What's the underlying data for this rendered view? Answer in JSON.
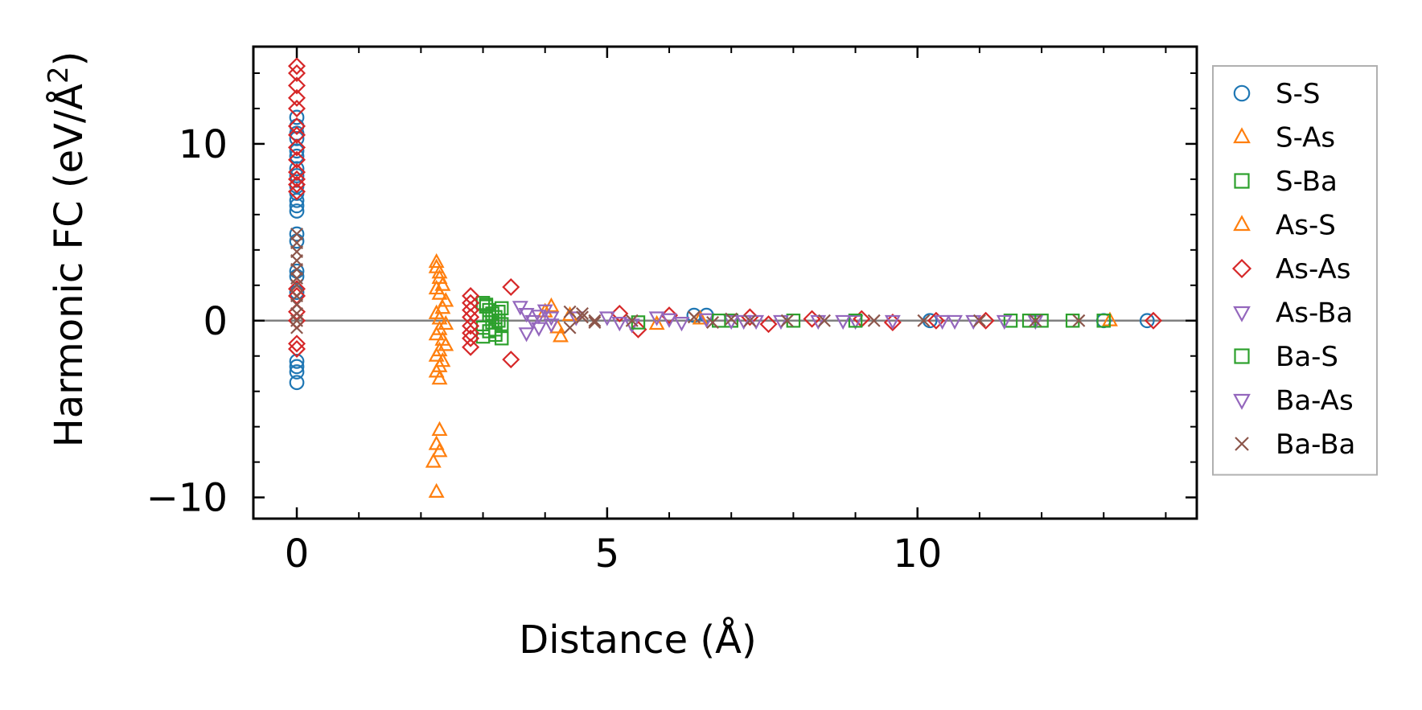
{
  "chart_data": {
    "type": "scatter",
    "xlabel": "Distance (Å)",
    "ylabel_main": "Harmonic FC (eV/Å",
    "ylabel_sup": "2",
    "ylabel_end": ")",
    "xlim": [
      -0.7,
      14.5
    ],
    "ylim": [
      -11.2,
      15.5
    ],
    "xticks": [
      0,
      5,
      10
    ],
    "xtick_labels": [
      "0",
      "5",
      "10"
    ],
    "yticks": [
      -10,
      0,
      10
    ],
    "ytick_labels": [
      "−10",
      "0",
      "10"
    ],
    "grid": false,
    "reference_line_y": 0,
    "legend_position": "outside-right",
    "series": [
      {
        "name": "S-S",
        "marker": "circle",
        "color": "#1f77b4",
        "x": [
          0,
          0,
          0,
          0,
          0,
          0,
          0,
          0,
          0,
          0,
          0,
          0,
          0,
          0,
          0,
          0,
          0,
          0,
          0,
          0,
          0,
          0,
          6.4,
          6.6,
          10.2,
          13.0,
          13.7
        ],
        "y": [
          11.5,
          11.0,
          10.6,
          10.3,
          9.6,
          9.3,
          8.6,
          8.2,
          7.6,
          7.2,
          6.8,
          6.5,
          6.2,
          4.9,
          4.5,
          2.8,
          2.5,
          1.6,
          -2.3,
          -2.6,
          -2.9,
          -3.5,
          0.3,
          0.3,
          0,
          0,
          0
        ]
      },
      {
        "name": "S-As",
        "marker": "triangle-up",
        "color": "#ff7f0e",
        "x": [
          2.25,
          2.25,
          2.3,
          2.3,
          2.35,
          2.25,
          2.3,
          2.4,
          2.35,
          2.25,
          2.3,
          2.4,
          2.3,
          2.25,
          2.35,
          2.4,
          2.3,
          2.25,
          2.35,
          2.3,
          2.25,
          2.3,
          2.3,
          2.25,
          2.3,
          2.2,
          2.25,
          4.1,
          4.25,
          13.1
        ],
        "y": [
          3.3,
          3.0,
          2.7,
          2.4,
          2.0,
          1.8,
          1.5,
          1.1,
          0.7,
          0.4,
          0.1,
          -0.2,
          -0.5,
          -0.8,
          -1.1,
          -1.4,
          -1.7,
          -2.0,
          -2.3,
          -2.6,
          -2.9,
          -3.3,
          -6.2,
          -7.0,
          -7.4,
          -8.0,
          -9.7,
          0.8,
          -0.9,
          0
        ]
      },
      {
        "name": "S-Ba",
        "marker": "square",
        "color": "#2ca02c",
        "x": [
          3.0,
          3.05,
          3.1,
          3.15,
          3.2,
          3.25,
          3.3,
          3.0,
          3.1,
          3.2,
          3.3,
          3.05,
          3.15,
          3.25,
          3.0,
          3.1,
          3.2,
          3.3,
          7.0,
          8.0,
          11.5,
          12.0,
          12.5,
          13.0
        ],
        "y": [
          1.0,
          0.8,
          0.6,
          0.4,
          0.2,
          0,
          -0.2,
          -0.4,
          -0.6,
          -0.8,
          -1.0,
          0.9,
          -0.1,
          0.5,
          -0.9,
          0.3,
          -0.5,
          0.7,
          0,
          0,
          0,
          0,
          0,
          0
        ]
      },
      {
        "name": "As-S",
        "marker": "triangle-up",
        "color": "#ff7f0e",
        "x": [
          4.0,
          4.2,
          4.4,
          5.8,
          6.5
        ],
        "y": [
          0.5,
          -0.4,
          0.3,
          -0.2,
          0.1
        ]
      },
      {
        "name": "As-As",
        "marker": "diamond",
        "color": "#d62728",
        "x": [
          0,
          0,
          0,
          0,
          0,
          0,
          0,
          0,
          0,
          0,
          0,
          0,
          0,
          0,
          0,
          0,
          0,
          0,
          0,
          2.8,
          2.8,
          2.8,
          2.8,
          2.8,
          2.8,
          2.8,
          2.8,
          3.45,
          3.45,
          5.2,
          5.5,
          6.0,
          7.3,
          7.6,
          8.3,
          9.1,
          9.6,
          10.3,
          11.1,
          13.8
        ],
        "y": [
          14.4,
          14.0,
          13.3,
          12.6,
          12.0,
          11.0,
          10.5,
          9.8,
          9.1,
          8.4,
          8.0,
          7.7,
          7.3,
          1.8,
          1.4,
          0.5,
          0,
          -1.3,
          -1.6,
          1.4,
          1.0,
          0.6,
          0.2,
          -0.3,
          -0.7,
          -1.0,
          -1.5,
          1.9,
          -2.2,
          0.4,
          -0.5,
          0.3,
          0.2,
          -0.2,
          0.1,
          0.1,
          -0.1,
          0,
          0,
          0
        ]
      },
      {
        "name": "As-Ba",
        "marker": "triangle-down",
        "color": "#9467bd",
        "x": [
          3.6,
          3.7,
          3.8,
          3.9,
          4.0,
          4.1,
          3.7,
          3.9,
          4.1,
          5.0,
          5.4,
          5.8,
          6.2,
          6.6,
          7.0,
          7.4,
          7.8,
          8.4,
          9.0,
          9.6,
          10.4,
          10.9,
          11.4,
          11.9
        ],
        "y": [
          0.8,
          0.4,
          0,
          -0.4,
          0.6,
          -0.2,
          -0.7,
          0.3,
          0.2,
          0.2,
          -0.2,
          0.2,
          -0.1,
          0.1,
          0,
          0,
          0,
          0,
          0,
          0,
          0,
          0,
          0,
          0
        ]
      },
      {
        "name": "Ba-S",
        "marker": "square",
        "color": "#2ca02c",
        "x": [
          5.5,
          6.8,
          9.0,
          11.8
        ],
        "y": [
          -0.1,
          0,
          0,
          0
        ]
      },
      {
        "name": "Ba-As",
        "marker": "triangle-down",
        "color": "#9467bd",
        "x": [
          4.5,
          5.2,
          6.0,
          7.2,
          8.8,
          10.6
        ],
        "y": [
          0.2,
          -0.1,
          0.1,
          0,
          0,
          0
        ]
      },
      {
        "name": "Ba-Ba",
        "marker": "x",
        "color": "#8c564b",
        "x": [
          0,
          0,
          0,
          0,
          0,
          0,
          0,
          0,
          0,
          0,
          0,
          0,
          4.4,
          4.6,
          4.8,
          4.4,
          4.6,
          4.8,
          5.4,
          6.4,
          6.7,
          7.0,
          7.3,
          7.9,
          8.5,
          9.3,
          10.1,
          11.0,
          11.9,
          12.6
        ],
        "y": [
          4.9,
          4.4,
          3.9,
          3.4,
          2.9,
          2.4,
          2.0,
          1.4,
          0.9,
          0.4,
          0,
          -0.4,
          0.5,
          0.2,
          -0.1,
          -0.4,
          0.4,
          0,
          0,
          0.2,
          -0.1,
          0.1,
          0,
          0,
          0,
          0,
          0,
          0,
          0,
          0
        ]
      }
    ]
  }
}
